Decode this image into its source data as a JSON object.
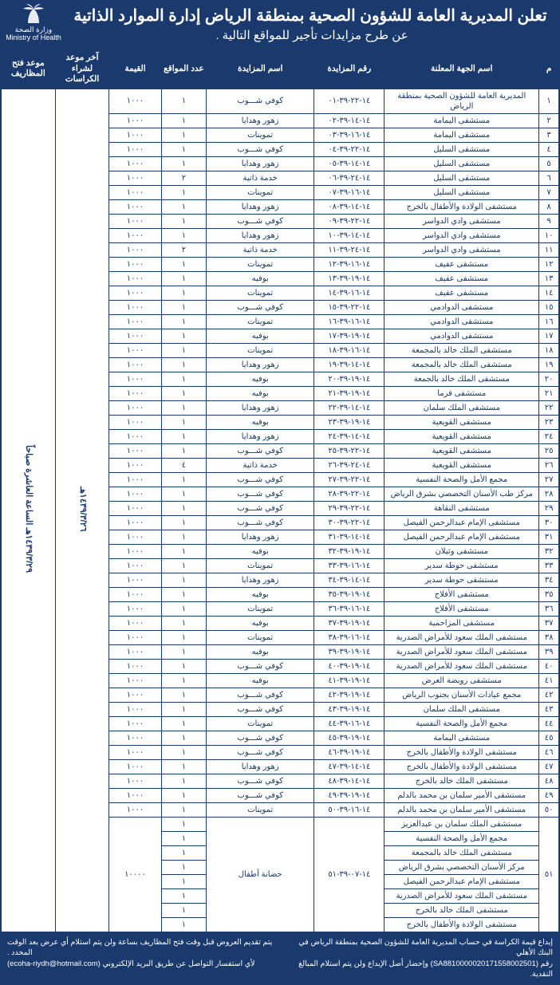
{
  "colors": {
    "primary": "#1a3a6e",
    "text": "#1a3a6e",
    "bg": "#ffffff",
    "header_text": "#ffffff"
  },
  "logo": {
    "ar": "وزارة الصحة",
    "en": "Ministry of Health"
  },
  "header": {
    "title": "تعلن المديرية العامة للشؤون الصحية بمنطقة الرياض إدارة الموارد الذاتية",
    "subtitle": "عن طرح مزايدات تأجير للمواقع التالية ."
  },
  "columns": {
    "m": "م",
    "entity": "اسم الجهة المعلنة",
    "bid_no": "رقم المزايدة",
    "bid_name": "اسم المزايدة",
    "sites": "عدد المواقع",
    "value": "القيمة",
    "buy_deadline": "آخر موعد لشراء الكراسات",
    "open_date": "موعد فتح المظاريف"
  },
  "shared": {
    "buy_deadline": "١٤٣٩/٣/٢٦هـ",
    "open_date": "١٤٣٩/٣/٢٩هـ الساعة العاشرة صباحاً"
  },
  "rows": [
    {
      "m": "١",
      "entity": "المديرية العامة للشؤون الصحية بمنطقة الرياض",
      "no": "١٤-٢٢-٣٩-٠١",
      "name": "كوفي شـــوب",
      "sites": "١",
      "value": "١٠٠٠"
    },
    {
      "m": "٢",
      "entity": "مستشفى اليمامة",
      "no": "١٤-١٤-٣٩-٠٢",
      "name": "زهور وهدايا",
      "sites": "١",
      "value": "١٠٠٠"
    },
    {
      "m": "٣",
      "entity": "مستشفى اليمامة",
      "no": "١٤-١٦-٣٩-٠٣",
      "name": "تموينات",
      "sites": "١",
      "value": "١٠٠٠"
    },
    {
      "m": "٤",
      "entity": "مستشفى السليل",
      "no": "١٤-٢٢-٣٩-٠٤",
      "name": "كوفي شـــوب",
      "sites": "١",
      "value": "١٠٠٠"
    },
    {
      "m": "٥",
      "entity": "مستشفى السليل",
      "no": "١٤-١٤-٣٩-٠٥",
      "name": "زهور وهدايا",
      "sites": "١",
      "value": "١٠٠٠"
    },
    {
      "m": "٦",
      "entity": "مستشفى السليل",
      "no": "١٤-٢٤-٣٩-٠٦",
      "name": "خدمة ذاتية",
      "sites": "٢",
      "value": "١٠٠٠"
    },
    {
      "m": "٧",
      "entity": "مستشفى السليل",
      "no": "١٤-١٦-٣٩-٠٧",
      "name": "تموينات",
      "sites": "١",
      "value": "١٠٠٠"
    },
    {
      "m": "٨",
      "entity": "مستشفى الولادة والأطفال بالخرج",
      "no": "١٤-١٤-٣٩-٠٨",
      "name": "زهور وهدايا",
      "sites": "١",
      "value": "١٠٠٠"
    },
    {
      "m": "٩",
      "entity": "مستشفى وادي الدواسر",
      "no": "١٤-٢٢-٣٩-٠٩",
      "name": "كوفي شـــوب",
      "sites": "١",
      "value": "١٠٠٠"
    },
    {
      "m": "١٠",
      "entity": "مستشفى وادي الدواسر",
      "no": "١٤-١٤-٣٩-١٠",
      "name": "زهور وهدايا",
      "sites": "١",
      "value": "١٠٠٠"
    },
    {
      "m": "١١",
      "entity": "مستشفى وادي الدواسر",
      "no": "١٤-٢٤-٣٩-١١",
      "name": "خدمة ذاتية",
      "sites": "٢",
      "value": "١٠٠٠"
    },
    {
      "m": "١٢",
      "entity": "مستشفى عفيف",
      "no": "١٤-١٦-٣٩-١٢",
      "name": "تموينات",
      "sites": "١",
      "value": "١٠٠٠"
    },
    {
      "m": "١٣",
      "entity": "مستشفى عفيف",
      "no": "١٤-١٩-٣٩-١٣",
      "name": "بوفيه",
      "sites": "١",
      "value": "١٠٠٠"
    },
    {
      "m": "١٤",
      "entity": "مستشفى عفيف",
      "no": "١٤-١٦-٣٩-١٤",
      "name": "تموينات",
      "sites": "١",
      "value": "١٠٠٠"
    },
    {
      "m": "١٥",
      "entity": "مستشفى الدوادمي",
      "no": "١٤-٢٢-٣٩-١٥",
      "name": "كوفي شـــوب",
      "sites": "١",
      "value": "١٠٠٠"
    },
    {
      "m": "١٦",
      "entity": "مستشفى الدوادمي",
      "no": "١٤-١٦-٣٩-١٦",
      "name": "تموينات",
      "sites": "١",
      "value": "١٠٠٠"
    },
    {
      "m": "١٧",
      "entity": "مستشفى الدوادمي",
      "no": "١٤-١٩-٣٩-١٧",
      "name": "بوفيه",
      "sites": "١",
      "value": "١٠٠٠"
    },
    {
      "m": "١٨",
      "entity": "مستشفى الملك خالد بالمجمعة",
      "no": "١٤-١٦-٣٩-١٨",
      "name": "تموينات",
      "sites": "١",
      "value": "١٠٠٠"
    },
    {
      "m": "١٩",
      "entity": "مستشفى الملك خالد بالمجمعة",
      "no": "١٤-١٤-٣٩-١٩",
      "name": "زهور وهدايا",
      "sites": "١",
      "value": "١٠٠٠"
    },
    {
      "m": "٢٠",
      "entity": "مستشفى الملك خالد بالجمعة",
      "no": "١٤-١٩-٣٩-٢٠",
      "name": "بوفيه",
      "sites": "١",
      "value": "١٠٠٠"
    },
    {
      "m": "٢١",
      "entity": "مستشفى قرما",
      "no": "١٤-١٩-٣٩-٢١",
      "name": "بوفيه",
      "sites": "١",
      "value": "١٠٠٠"
    },
    {
      "m": "٢٢",
      "entity": "مستشفى الملك سلمان",
      "no": "١٤-١٤-٣٩-٢٢",
      "name": "زهور وهدايا",
      "sites": "١",
      "value": "١٠٠٠"
    },
    {
      "m": "٢٣",
      "entity": "مستشفى القويعية",
      "no": "١٤-١٩-٣٩-٢٣",
      "name": "بوفيه",
      "sites": "١",
      "value": "١٠٠٠"
    },
    {
      "m": "٢٤",
      "entity": "مستشفى القويعية",
      "no": "١٤-١٤-٣٩-٢٤",
      "name": "زهور وهدايا",
      "sites": "١",
      "value": "١٠٠٠"
    },
    {
      "m": "٢٥",
      "entity": "مستشفى القويعية",
      "no": "١٤-٢٢-٣٩-٢٥",
      "name": "كوفي شـــوب",
      "sites": "١",
      "value": "١٠٠٠"
    },
    {
      "m": "٢٦",
      "entity": "مستشفى القويعية",
      "no": "١٤-٢٤-٣٩-٢٦",
      "name": "خدمة ذاتية",
      "sites": "٤",
      "value": "١٠٠٠"
    },
    {
      "m": "٢٧",
      "entity": "مجمع الأمل والصحة النفسية",
      "no": "١٤-٢٢-٣٩-٢٧",
      "name": "كوفي شـــوب",
      "sites": "١",
      "value": "١٠٠٠"
    },
    {
      "m": "٢٨",
      "entity": "مركز طب الأسنان التخصصي بشرق الرياض",
      "no": "١٤-٢٢-٣٩-٢٨",
      "name": "كوفي شـــوب",
      "sites": "١",
      "value": "١٠٠٠"
    },
    {
      "m": "٢٩",
      "entity": "مستشفى النقاهة",
      "no": "١٤-٢٢-٣٩-٢٩",
      "name": "كوفي شـــوب",
      "sites": "١",
      "value": "١٠٠٠"
    },
    {
      "m": "٣٠",
      "entity": "مستشفى الإمام عبدالرحمن الفيصل",
      "no": "١٤-٢٢-٣٩-٣٠",
      "name": "كوفي شـــوب",
      "sites": "١",
      "value": "١٠٠٠"
    },
    {
      "m": "٣١",
      "entity": "مستشفى الإمام عبدالرحمن الفيصل",
      "no": "١٤-١٤-٣٩-٣١",
      "name": "زهور وهدايا",
      "sites": "١",
      "value": "١٠٠٠"
    },
    {
      "m": "٣٢",
      "entity": "مستشفى وثيلان",
      "no": "١٤-١٩-٣٩-٣٢",
      "name": "بوفيه",
      "sites": "١",
      "value": "١٠٠٠"
    },
    {
      "m": "٣٣",
      "entity": "مستشفى حوطة سدير",
      "no": "١٤-١٦-٣٩-٣٣",
      "name": "تموينات",
      "sites": "١",
      "value": "١٠٠٠"
    },
    {
      "m": "٣٤",
      "entity": "مستشفى حوطة سدير",
      "no": "١٤-١٤-٣٩-٣٤",
      "name": "زهور وهدايا",
      "sites": "١",
      "value": "١٠٠٠"
    },
    {
      "m": "٣٥",
      "entity": "مستشفى الأفلاج",
      "no": "١٤-١٩-٣٩-٣٥",
      "name": "بوفيه",
      "sites": "١",
      "value": "١٠٠٠"
    },
    {
      "m": "٣٦",
      "entity": "مستشفى الأفلاج",
      "no": "١٤-١٦-٣٩-٣٦",
      "name": "تموينات",
      "sites": "١",
      "value": "١٠٠٠"
    },
    {
      "m": "٣٧",
      "entity": "مستشفى المزاحمية",
      "no": "١٤-١٩-٣٩-٣٧",
      "name": "بوفيه",
      "sites": "١",
      "value": "١٠٠٠"
    },
    {
      "m": "٣٨",
      "entity": "مستشفى الملك سعود للأمراض الصدرية",
      "no": "١٤-١٦-٣٩-٣٨",
      "name": "تموينات",
      "sites": "١",
      "value": "١٠٠٠"
    },
    {
      "m": "٣٩",
      "entity": "مستشفى الملك سعود للأمراض الصدرية",
      "no": "١٤-١٩-٣٩-٣٩",
      "name": "بوفيه",
      "sites": "١",
      "value": "١٠٠٠"
    },
    {
      "m": "٤٠",
      "entity": "مستشفى الملك سعود للأمراض الصدرية",
      "no": "١٤-١٩-٣٩-٤٠",
      "name": "كوفي شـــوب",
      "sites": "١",
      "value": "١٠٠٠"
    },
    {
      "m": "٤١",
      "entity": "مستشفى رويضة العرض",
      "no": "١٤-١٩-٣٩-٤١",
      "name": "بوفيه",
      "sites": "١",
      "value": "١٠٠٠"
    },
    {
      "m": "٤٢",
      "entity": "مجمع عيادات الأسنان بجنوب الرياض",
      "no": "١٤-١٩-٣٩-٤٢",
      "name": "كوفي شـــوب",
      "sites": "١",
      "value": "١٠٠٠"
    },
    {
      "m": "٤٣",
      "entity": "مستشفى الملك سلمان",
      "no": "١٤-١٩-٣٩-٤٣",
      "name": "كوفي شـــوب",
      "sites": "١",
      "value": "١٠٠٠"
    },
    {
      "m": "٤٤",
      "entity": "مجمع الأمل والصحة النفسية",
      "no": "١٤-١٦-٣٩-٤٤",
      "name": "تموينات",
      "sites": "١",
      "value": "١٠٠٠"
    },
    {
      "m": "٤٥",
      "entity": "مستشفى اليمامة",
      "no": "١٤-١٩-٣٩-٤٥",
      "name": "كوفي شـــوب",
      "sites": "١",
      "value": "١٠٠٠"
    },
    {
      "m": "٤٦",
      "entity": "مستشفى الولادة والأطفال بالخرج",
      "no": "١٤-١٩-٣٩-٤٦",
      "name": "كوفي شـــوب",
      "sites": "١",
      "value": "١٠٠٠"
    },
    {
      "m": "٤٧",
      "entity": "مستشفى الولادة والأطفال بالخرج",
      "no": "١٤-١٤-٣٩-٤٧",
      "name": "زهور وهدايا",
      "sites": "١",
      "value": "١٠٠٠"
    },
    {
      "m": "٤٨",
      "entity": "مستشفى الملك خالد بالخرج",
      "no": "١٤-١٤-٣٩-٤٨",
      "name": "كوفي شـــوب",
      "sites": "١",
      "value": "١٠٠٠"
    },
    {
      "m": "٤٩",
      "entity": "مستشفى الأمير سلمان بن محمد بالدلم",
      "no": "١٤-١٩-٣٩-٤٩",
      "name": "كوفي شـــوب",
      "sites": "١",
      "value": "١٠٠٠"
    },
    {
      "m": "٥٠",
      "entity": "مستشفى الأمير سلمان بن محمد بالدلم",
      "no": "١٤-١٦-٣٩-٥٠",
      "name": "تموينات",
      "sites": "١",
      "value": "١٠٠٠"
    }
  ],
  "row51": {
    "m": "٥١",
    "entities": [
      "مستشفى الملك سلمان بن عبدالعزيز",
      "مجمع الأمل والصحة النفسية",
      "مستشفى الملك خالد بالمجمعة",
      "مركز الأسنان التخصصي بشرق الرياض",
      "مستشفى الإمام عبدالرحمن الفيصل",
      "مستشفى الملك سعود للأمراض الصدرية",
      "مستشفى الملك خالد بالخرج",
      "مستشفى الولادة والأطفال بالخرج"
    ],
    "no": "١٤-٠٧-٣٩-٥١",
    "name": "حضانة أطفال",
    "sites": [
      "١",
      "١",
      "١",
      "١",
      "١",
      "١",
      "١",
      "١"
    ],
    "value": "١٠٠٠٠"
  },
  "footer": {
    "right1": "إيداع قيمة الكراسة في حساب المديرية العامة للشؤون الصحية بمنطقة الرياض في البنك الأهلي",
    "right2": "رقم (SA8810000020171558002501) وإحضار أصل الإيداع ولن يتم استلام المبالغ النقدية.",
    "left1": "يتم تقديم العروض قبل وقت فتح المظاريف بساعة ولن يتم استلام أي عرض بعد الوقت المحدد .",
    "left2": "لأي استفسار التواصل عن طريق البريد الإلكتروني (ecoha-riydh@hotmail.com)"
  }
}
